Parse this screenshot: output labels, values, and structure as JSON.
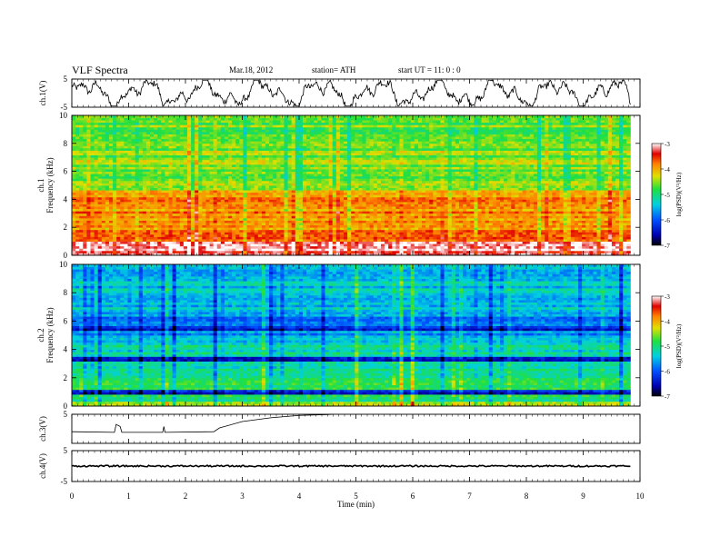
{
  "header": {
    "title": "VLF  Spectra",
    "date": "Mar.18, 2012",
    "station": "station= ATH",
    "start": "start  UT  =    11: 0   : 0"
  },
  "chart_data": {
    "type": "heatmap",
    "x_axis": {
      "label": "Time  (min)",
      "range": [
        0,
        10
      ],
      "ticks": [
        "0",
        "1",
        "2",
        "3",
        "4",
        "5",
        "6",
        "7",
        "8",
        "9",
        "10"
      ],
      "data_end": 9.83
    },
    "panels": [
      {
        "id": "ch1-trace",
        "type": "line",
        "ylabel": "ch.1(V)",
        "ylim": [
          -5,
          5
        ],
        "ticks": [
          "5",
          "-5"
        ]
      },
      {
        "id": "ch1-spec",
        "type": "heatmap",
        "ylabel_line1": "ch.1",
        "ylabel_line2": "Frequency  (kHz)",
        "ylim": [
          0,
          10
        ],
        "ticks": [
          "0",
          "2",
          "4",
          "6",
          "8",
          "10"
        ],
        "colorbar": {
          "label": "log(PSD)(V²/Hz)",
          "range": [
            -7,
            -3
          ],
          "ticks": [
            "-3",
            "-4",
            "-5",
            "-6",
            "-7"
          ]
        }
      },
      {
        "id": "ch2-spec",
        "type": "heatmap",
        "ylabel_line1": "ch.2",
        "ylabel_line2": "Frequency  (kHz)",
        "ylim": [
          0,
          10
        ],
        "ticks": [
          "0",
          "2",
          "4",
          "6",
          "8",
          "10"
        ],
        "colorbar": {
          "label": "log(PSD)(V²/Hz)",
          "range": [
            -7,
            -3
          ],
          "ticks": [
            "-3",
            "-4",
            "-5",
            "-6",
            "-7"
          ]
        }
      },
      {
        "id": "ch3-trace",
        "type": "line",
        "ylabel": "ch.3(V)",
        "ylim": [
          -5,
          5
        ],
        "ticks": [
          "5"
        ],
        "points": [
          [
            0,
            -1
          ],
          [
            0.75,
            -1.2
          ],
          [
            0.78,
            1.5
          ],
          [
            0.85,
            0.8
          ],
          [
            0.88,
            -1.2
          ],
          [
            1.6,
            -1.2
          ],
          [
            1.62,
            0.8
          ],
          [
            1.64,
            -1.2
          ],
          [
            2.5,
            -1.0
          ],
          [
            2.6,
            0.3
          ],
          [
            3.0,
            2.5
          ],
          [
            3.5,
            3.8
          ],
          [
            4.0,
            4.6
          ],
          [
            4.5,
            4.9
          ],
          [
            4.6,
            5
          ]
        ]
      },
      {
        "id": "ch4-trace",
        "type": "line",
        "ylabel": "ch.4(V)",
        "ylim": [
          -5,
          5
        ],
        "ticks": [
          "5",
          "-5"
        ],
        "level": 0
      }
    ]
  }
}
